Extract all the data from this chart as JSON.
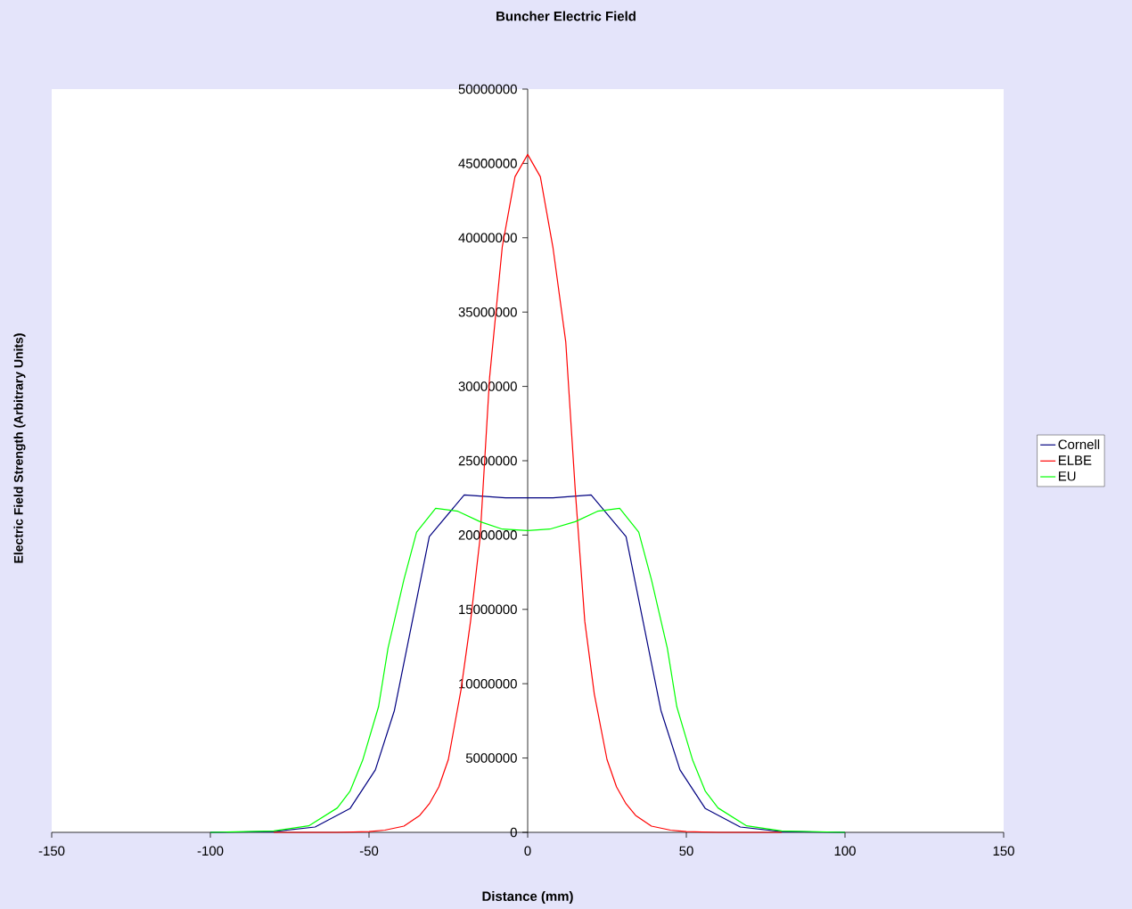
{
  "chart_data": {
    "type": "line",
    "title": "Buncher Electric Field",
    "xlabel": "Distance (mm)",
    "ylabel": "Electric Field Strength (Arbitrary Units)",
    "xlim": [
      -150,
      150
    ],
    "xticks": [
      -150,
      -100,
      -50,
      0,
      50,
      100,
      150
    ],
    "ylim": [
      0,
      50000000
    ],
    "yticks": [
      0,
      5000000,
      10000000,
      15000000,
      20000000,
      25000000,
      30000000,
      35000000,
      40000000,
      45000000,
      50000000
    ],
    "legend": "right",
    "line_style": "solid",
    "series": [
      {
        "name": "Cornell",
        "color": "#000080",
        "x": [
          -100,
          -80,
          -67,
          -56,
          -48,
          -42,
          -31,
          -20,
          -7,
          8,
          20,
          31,
          42,
          48,
          56,
          67,
          80,
          100
        ],
        "values": [
          0,
          50000,
          360000,
          1600000,
          4200000,
          8200000,
          19900000,
          22700000,
          22500000,
          22500000,
          22700000,
          19900000,
          8200000,
          4200000,
          1600000,
          360000,
          50000,
          0
        ]
      },
      {
        "name": "ELBE",
        "color": "#ff0000",
        "x": [
          -80,
          -60,
          -50,
          -45,
          -39,
          -34,
          -31,
          -28,
          -25,
          -21,
          -18,
          -15,
          -12,
          -8,
          -4,
          0,
          4,
          8,
          12,
          15,
          18,
          21,
          25,
          28,
          31,
          34,
          39,
          45,
          50,
          60,
          80
        ],
        "values": [
          0,
          0,
          50000,
          150000,
          420000,
          1140000,
          1920000,
          3060000,
          4900000,
          9600000,
          14200000,
          19800000,
          30600000,
          39400000,
          44100000,
          45600000,
          44100000,
          39300000,
          33000000,
          23000000,
          14200000,
          9300000,
          4900000,
          3060000,
          1920000,
          1140000,
          420000,
          150000,
          50000,
          0,
          0
        ]
      },
      {
        "name": "EU",
        "color": "#00ff00",
        "x": [
          -100,
          -80,
          -69,
          -60,
          -56,
          -52,
          -47,
          -44,
          -39,
          -35,
          -29,
          -22,
          -15,
          -8,
          0,
          7,
          15,
          22,
          29,
          35,
          39,
          44,
          47,
          52,
          56,
          60,
          69,
          80,
          100
        ],
        "values": [
          0,
          100000,
          440000,
          1640000,
          2760000,
          4850000,
          8450000,
          12400000,
          17000000,
          20200000,
          21800000,
          21600000,
          20900000,
          20400000,
          20300000,
          20400000,
          20900000,
          21600000,
          21800000,
          20200000,
          17000000,
          12400000,
          8450000,
          4850000,
          2760000,
          1640000,
          440000,
          100000,
          0
        ]
      }
    ]
  }
}
